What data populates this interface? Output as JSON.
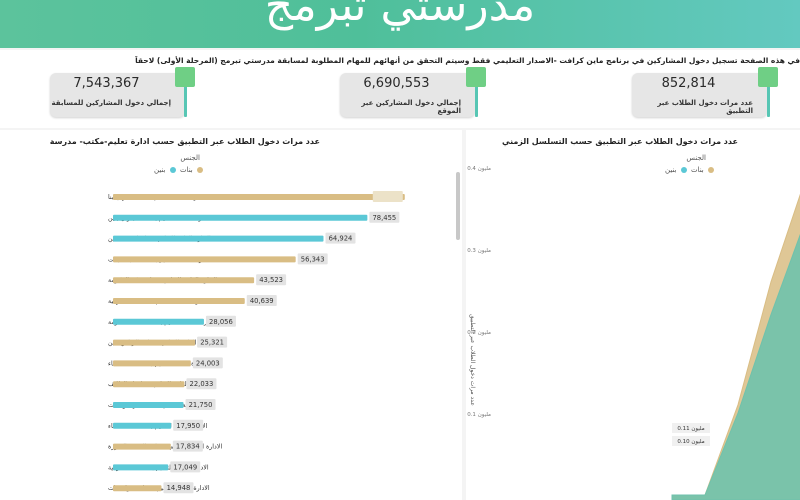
{
  "header": {
    "title": "مدرستي تبرمج"
  },
  "notice": "في هذه الصفحة تسجيل دخول المشاركين في برنامج ماين كرافت -الاصدار التعليمي فقط وسيتم التحقق من أنهائهم للمهام المطلوبة لمسابقة مدرستي تبرمج (المرحلة الأولى) لاحقاً",
  "kpis": [
    {
      "value": "7,543,367",
      "label": "إجمالي دخول المشاركين للمسابقة"
    },
    {
      "value": "6,690,553",
      "label": "إجمالي دخول المشاركين عبر الموقع"
    },
    {
      "value": "852,814",
      "label": "عدد مرات دخول الطلاب عبر التطبيق"
    }
  ],
  "colors": {
    "boys": "#5bc8d6",
    "girls": "#d9bd84",
    "banner": "#5cc39c",
    "area_fill": "#6fc2ac"
  },
  "left_panel": {
    "title": "عدد مرات دخول الطلاب عبر التطبيق حسب ادارة تعليم-مكتب- مدرسة",
    "legend_title": "الجنس",
    "legend_items": [
      {
        "label": "بنات",
        "color": "#d9bd84"
      },
      {
        "label": "بنين",
        "color": "#5bc8d6"
      }
    ]
  },
  "right_panel": {
    "title": "عدد مرات دخول الطلاب عبر التطبيق حسب التسلسل الزمني",
    "legend_title": "الجنس",
    "legend_items": [
      {
        "label": "بنات",
        "color": "#d9bd84"
      },
      {
        "label": "بنين",
        "color": "#5bc8d6"
      }
    ]
  },
  "chart_data": [
    {
      "type": "bar",
      "orientation": "horizontal",
      "title": "عدد مرات دخول الطلاب عبر التطبيق حسب ادارة تعليم-مكتب- مدرسة",
      "legend": "top-right",
      "xlim": [
        0,
        95000
      ],
      "grid": false,
      "categories": [
        "الادارة العامة للتعليم بمنطقة جازان-بنا",
        "الادارة العامة للتعليم بمنطقة جازان-بنين",
        "الادارة العامة للتعليم بمحافظة جدة-بنين",
        "الادارة العامة للتعليم بمحافظة جدة-بنات",
        "الادارة العامة للتعليم بمنطقة مكة المكرمة",
        "الادارة العامة للتعليم بالمنطقة الشرقية",
        "الادارة العامة للتعليم بمنطقة مكة المكرمة",
        "الادارة العامة للتعليم بمنطقة الرياض-بنين",
        "الادارة العامة للتعليم بمحافظة الاحساء",
        "الادارة العامة للتعليم بمحافظة الطائف",
        "الادارة العامة للتعليم بمنطقة الرياض-بنات",
        "الادارة العامة للتعليم بمحافظة الاحساء",
        "الادارة العامة للتعليم بمنطقة المدينة المنورة",
        "الادارة العامة للتعليم بالمنطقة الشرقية",
        "الادارة العامة للتعليم بمنطقة تبوك-بنات"
      ],
      "values": [
        90000,
        78455,
        64924,
        56343,
        43523,
        40639,
        28056,
        25321,
        24003,
        22033,
        21750,
        17950,
        17834,
        17049,
        14948
      ],
      "value_labels": [
        "",
        "78,455",
        "64,924",
        "56,343",
        "43,523",
        "40,639",
        "28,056",
        "25,321",
        "24,003",
        "22,033",
        "21,750",
        "17,950",
        "17,834",
        "17,049",
        "14,948"
      ],
      "series_by_bar": [
        "girls",
        "boys",
        "boys",
        "girls",
        "girls",
        "girls",
        "boys",
        "girls",
        "girls",
        "girls",
        "boys",
        "boys",
        "girls",
        "boys",
        "girls"
      ]
    },
    {
      "type": "area",
      "title": "عدد مرات دخول الطلاب عبر التطبيق حسب التسلسل الزمني",
      "ylabel": "عدد مرات دخول الطلاب عبر التطبيق",
      "ylim": [
        0,
        0.4
      ],
      "yticks": [
        0.1,
        0.2,
        0.3,
        0.4
      ],
      "ytick_labels": [
        "0.1 مليون",
        "0.2 مليون",
        "0.3 مليون",
        "0.4 مليون"
      ],
      "legend": "top-right",
      "grid": false,
      "series": [
        {
          "name": "بنات",
          "color": "#d9bd84",
          "x": [
            0,
            1,
            2,
            3,
            4
          ],
          "values": [
            0,
            0,
            0.11,
            0.26,
            0.38
          ]
        },
        {
          "name": "بنين",
          "color": "#6fc2ac",
          "x": [
            0,
            1,
            2,
            3,
            4
          ],
          "values": [
            0,
            0,
            0.1,
            0.22,
            0.33
          ]
        }
      ],
      "annotations": [
        "0.11 مليون",
        "0.10 مليون"
      ]
    }
  ]
}
